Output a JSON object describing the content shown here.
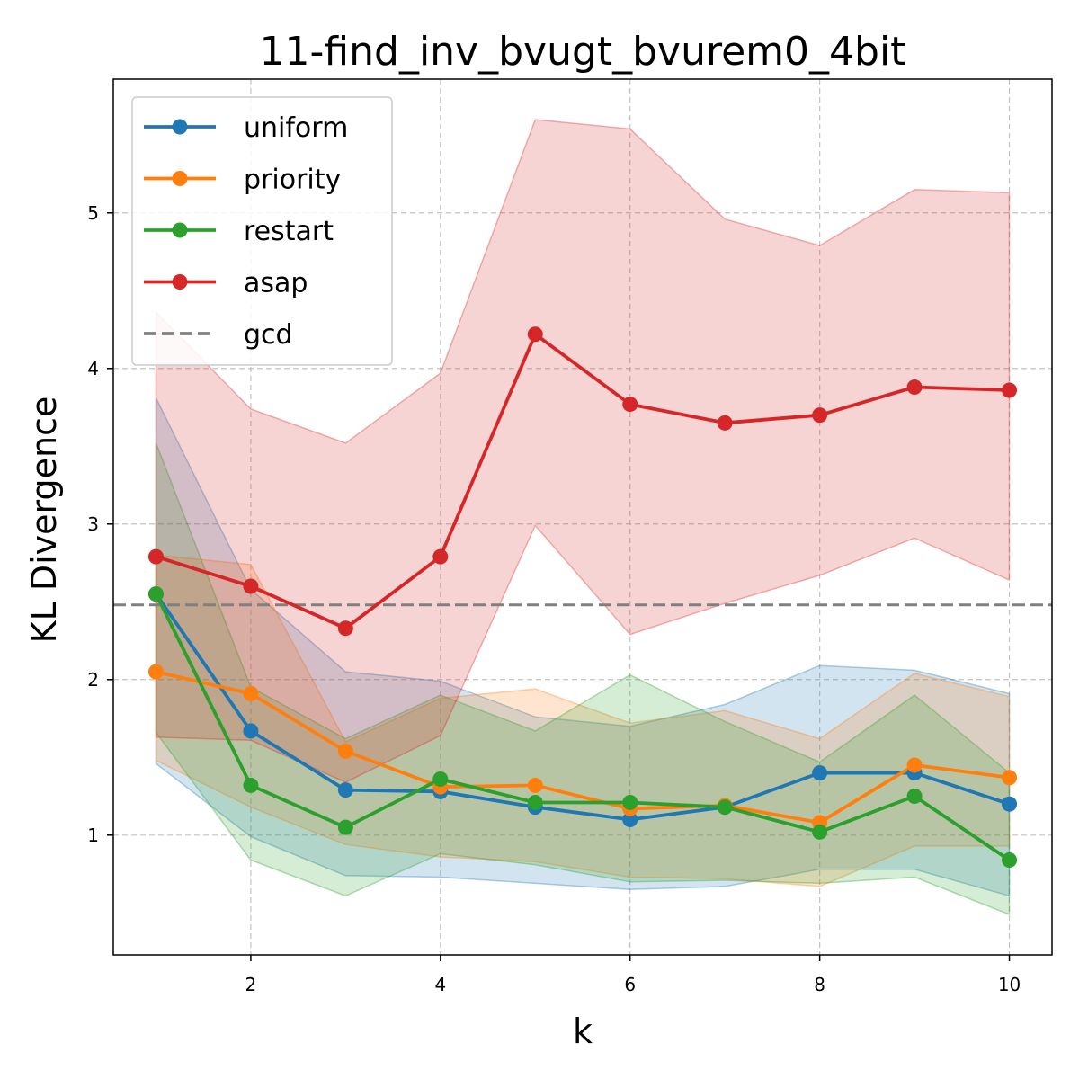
{
  "chart_data": {
    "type": "line",
    "title": "11-find_inv_bvugt_bvurem0_4bit",
    "xlabel": "k",
    "ylabel": "KL Divergence",
    "xlim": [
      0.55,
      10.45
    ],
    "ylim": [
      0.23,
      5.86
    ],
    "xticks": [
      2,
      4,
      6,
      8,
      10
    ],
    "yticks": [
      1,
      2,
      3,
      4,
      5
    ],
    "grid": true,
    "legend_position": "top-left",
    "x": [
      1,
      2,
      3,
      4,
      5,
      6,
      7,
      8,
      9,
      10
    ],
    "series": [
      {
        "name": "uniform",
        "color": "#1f77b4",
        "values": [
          2.55,
          1.67,
          1.29,
          1.28,
          1.18,
          1.1,
          1.18,
          1.4,
          1.4,
          1.2
        ],
        "lower": [
          1.46,
          0.99,
          0.74,
          0.73,
          0.69,
          0.65,
          0.67,
          0.78,
          0.78,
          0.61
        ],
        "upper": [
          3.81,
          2.58,
          2.05,
          1.99,
          1.76,
          1.7,
          1.84,
          2.09,
          2.06,
          1.91
        ]
      },
      {
        "name": "priority",
        "color": "#ff7f0e",
        "values": [
          2.05,
          1.91,
          1.54,
          1.31,
          1.32,
          1.17,
          1.19,
          1.08,
          1.45,
          1.37
        ],
        "lower": [
          1.48,
          1.18,
          0.94,
          0.86,
          0.83,
          0.73,
          0.72,
          0.67,
          0.93,
          0.93
        ],
        "upper": [
          2.8,
          2.74,
          1.6,
          1.88,
          1.94,
          1.72,
          1.8,
          1.62,
          2.04,
          1.89
        ]
      },
      {
        "name": "restart",
        "color": "#2ca02c",
        "values": [
          2.55,
          1.32,
          1.05,
          1.36,
          1.21,
          1.21,
          1.18,
          1.02,
          1.25,
          0.84
        ],
        "lower": [
          1.66,
          0.84,
          0.61,
          0.88,
          0.81,
          0.7,
          0.71,
          0.69,
          0.73,
          0.49
        ],
        "upper": [
          3.52,
          1.95,
          1.62,
          1.9,
          1.67,
          2.03,
          1.73,
          1.47,
          1.9,
          1.4
        ]
      },
      {
        "name": "asap",
        "color": "#d62728",
        "values": [
          2.79,
          2.6,
          2.33,
          2.79,
          4.22,
          3.77,
          3.65,
          3.7,
          3.88,
          3.86
        ],
        "lower": [
          1.63,
          1.61,
          1.34,
          1.64,
          2.99,
          2.29,
          2.49,
          2.67,
          2.91,
          2.64
        ],
        "upper": [
          4.36,
          3.74,
          3.52,
          3.97,
          5.6,
          5.54,
          4.96,
          4.79,
          5.15,
          5.13
        ]
      }
    ],
    "reference_line": {
      "name": "gcd",
      "value": 2.48,
      "color": "#808080"
    }
  }
}
